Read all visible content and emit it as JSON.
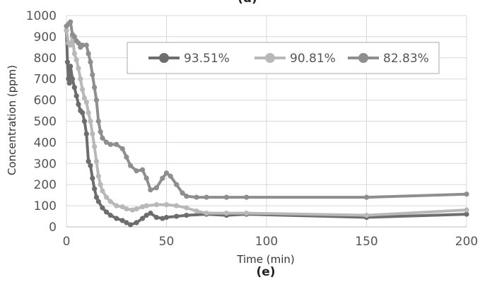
{
  "top_panel_label": "(d)",
  "chart_data": {
    "type": "line",
    "panel_label": "(e)",
    "title": "",
    "xlabel": "Time (min)",
    "ylabel": "Concentration (ppm)",
    "xlim": [
      0,
      200
    ],
    "ylim": [
      0,
      1000
    ],
    "xticks": [
      0,
      50,
      100,
      150,
      200
    ],
    "yticks": [
      0,
      100,
      200,
      300,
      400,
      500,
      600,
      700,
      800,
      900,
      1000
    ],
    "grid": true,
    "legend_position": "top-right",
    "series": [
      {
        "name": "93.51%",
        "color": "#6d6d6d",
        "points": [
          [
            0,
            930
          ],
          [
            0.5,
            780
          ],
          [
            1,
            700
          ],
          [
            1.5,
            680
          ],
          [
            2,
            760
          ],
          [
            3,
            700
          ],
          [
            4,
            660
          ],
          [
            5,
            620
          ],
          [
            6,
            580
          ],
          [
            7,
            550
          ],
          [
            8,
            540
          ],
          [
            9,
            500
          ],
          [
            10,
            440
          ],
          [
            11,
            310
          ],
          [
            12,
            290
          ],
          [
            13,
            230
          ],
          [
            14,
            180
          ],
          [
            15,
            140
          ],
          [
            16,
            120
          ],
          [
            18,
            90
          ],
          [
            20,
            70
          ],
          [
            22,
            55
          ],
          [
            25,
            40
          ],
          [
            28,
            30
          ],
          [
            30,
            20
          ],
          [
            32,
            10
          ],
          [
            35,
            20
          ],
          [
            38,
            40
          ],
          [
            40,
            55
          ],
          [
            42,
            65
          ],
          [
            45,
            45
          ],
          [
            48,
            40
          ],
          [
            50,
            45
          ],
          [
            55,
            50
          ],
          [
            60,
            55
          ],
          [
            70,
            60
          ],
          [
            80,
            55
          ],
          [
            90,
            60
          ],
          [
            150,
            45
          ],
          [
            200,
            60
          ]
        ]
      },
      {
        "name": "90.81%",
        "color": "#b8b8b8",
        "points": [
          [
            0,
            930
          ],
          [
            1,
            870
          ],
          [
            2,
            860
          ],
          [
            3,
            900
          ],
          [
            4,
            820
          ],
          [
            5,
            790
          ],
          [
            6,
            750
          ],
          [
            7,
            700
          ],
          [
            8,
            650
          ],
          [
            9,
            610
          ],
          [
            10,
            590
          ],
          [
            11,
            540
          ],
          [
            12,
            500
          ],
          [
            13,
            440
          ],
          [
            14,
            380
          ],
          [
            15,
            310
          ],
          [
            16,
            240
          ],
          [
            17,
            200
          ],
          [
            18,
            170
          ],
          [
            20,
            140
          ],
          [
            22,
            120
          ],
          [
            25,
            100
          ],
          [
            28,
            95
          ],
          [
            30,
            85
          ],
          [
            33,
            80
          ],
          [
            35,
            85
          ],
          [
            38,
            95
          ],
          [
            40,
            100
          ],
          [
            45,
            105
          ],
          [
            50,
            105
          ],
          [
            55,
            100
          ],
          [
            60,
            90
          ],
          [
            65,
            75
          ],
          [
            70,
            65
          ],
          [
            80,
            65
          ],
          [
            90,
            65
          ],
          [
            150,
            55
          ],
          [
            200,
            80
          ]
        ]
      },
      {
        "name": "82.83%",
        "color": "#8e8e8e",
        "points": [
          [
            0,
            950
          ],
          [
            1,
            960
          ],
          [
            2,
            970
          ],
          [
            3,
            910
          ],
          [
            4,
            900
          ],
          [
            5,
            880
          ],
          [
            6,
            870
          ],
          [
            7,
            850
          ],
          [
            8,
            860
          ],
          [
            10,
            860
          ],
          [
            11,
            820
          ],
          [
            12,
            780
          ],
          [
            13,
            720
          ],
          [
            14,
            660
          ],
          [
            15,
            600
          ],
          [
            16,
            500
          ],
          [
            17,
            450
          ],
          [
            18,
            420
          ],
          [
            20,
            400
          ],
          [
            22,
            390
          ],
          [
            25,
            390
          ],
          [
            28,
            370
          ],
          [
            30,
            330
          ],
          [
            32,
            290
          ],
          [
            35,
            265
          ],
          [
            38,
            270
          ],
          [
            40,
            230
          ],
          [
            42,
            175
          ],
          [
            45,
            185
          ],
          [
            48,
            230
          ],
          [
            50,
            255
          ],
          [
            52,
            240
          ],
          [
            55,
            200
          ],
          [
            58,
            160
          ],
          [
            60,
            145
          ],
          [
            65,
            140
          ],
          [
            70,
            140
          ],
          [
            80,
            140
          ],
          [
            90,
            140
          ],
          [
            150,
            140
          ],
          [
            200,
            155
          ]
        ]
      }
    ]
  }
}
